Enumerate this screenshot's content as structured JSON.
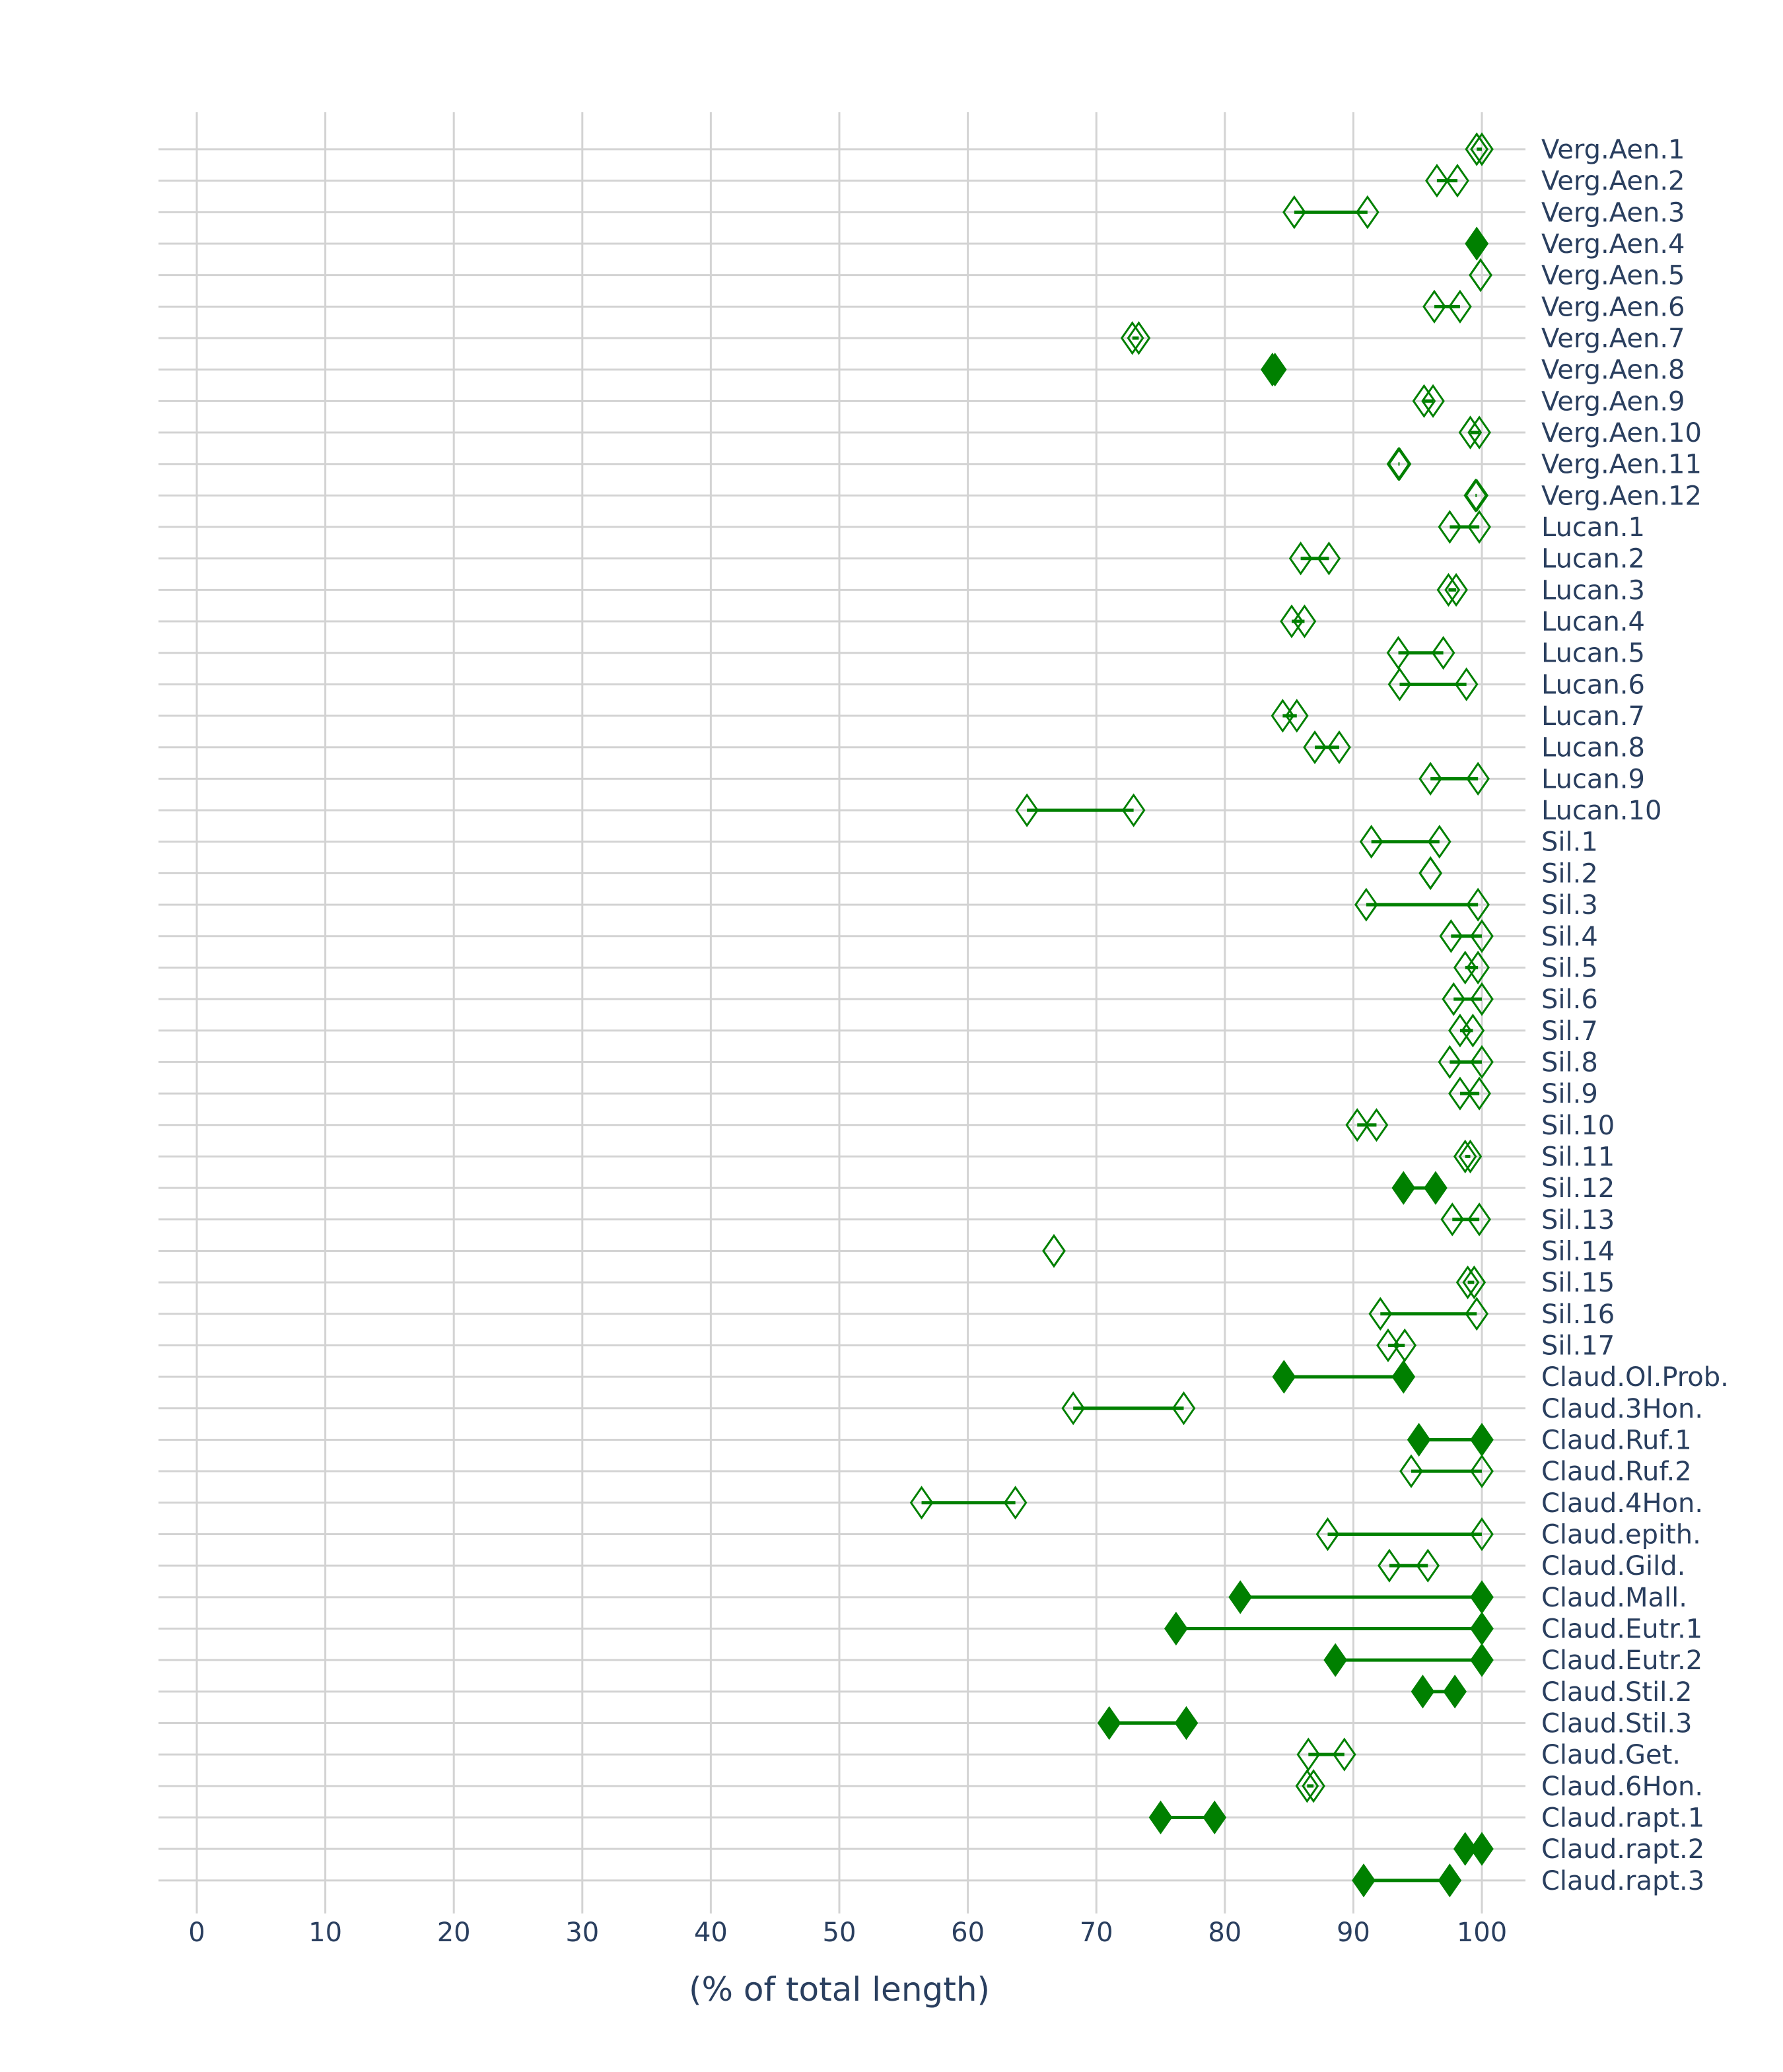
{
  "chart_data": {
    "type": "dumbbell",
    "title": "",
    "xlabel": "(% of total length)",
    "ylabel": "",
    "xlim": [
      0,
      100
    ],
    "x_ticks": [
      "0",
      "10",
      "20",
      "30",
      "40",
      "50",
      "60",
      "70",
      "80",
      "90",
      "100"
    ],
    "grid": true,
    "marker_color": "#008000",
    "grid_color": "#d3d3d3",
    "text_color": "#2a3f5f",
    "rows": [
      {
        "label": "Verg.Aen.1",
        "start": 99.6,
        "end": 100,
        "filled": false
      },
      {
        "label": "Verg.Aen.2",
        "start": 96.5,
        "end": 98.1,
        "filled": false
      },
      {
        "label": "Verg.Aen.3",
        "start": 85.4,
        "end": 91.1,
        "filled": false
      },
      {
        "label": "Verg.Aen.4",
        "start": 99.6,
        "end": 99.6,
        "filled": true
      },
      {
        "label": "Verg.Aen.5",
        "start": 99.9,
        "end": 99.9,
        "filled": false
      },
      {
        "label": "Verg.Aen.6",
        "start": 96.3,
        "end": 98.3,
        "filled": false
      },
      {
        "label": "Verg.Aen.7",
        "start": 72.8,
        "end": 73.3,
        "filled": false
      },
      {
        "label": "Verg.Aen.8",
        "start": 83.7,
        "end": 83.9,
        "filled": true
      },
      {
        "label": "Verg.Aen.9",
        "start": 95.5,
        "end": 96.2,
        "filled": false
      },
      {
        "label": "Verg.Aen.10",
        "start": 99.1,
        "end": 99.8,
        "filled": false
      },
      {
        "label": "Verg.Aen.11",
        "start": 93.5,
        "end": 93.6,
        "filled": false
      },
      {
        "label": "Verg.Aen.12",
        "start": 99.5,
        "end": 99.6,
        "filled": false
      },
      {
        "label": "Lucan.1",
        "start": 97.5,
        "end": 99.8,
        "filled": false
      },
      {
        "label": "Lucan.2",
        "start": 85.9,
        "end": 88.1,
        "filled": false
      },
      {
        "label": "Lucan.3",
        "start": 97.4,
        "end": 98.0,
        "filled": false
      },
      {
        "label": "Lucan.4",
        "start": 85.2,
        "end": 86.2,
        "filled": false
      },
      {
        "label": "Lucan.5",
        "start": 93.5,
        "end": 97.0,
        "filled": false
      },
      {
        "label": "Lucan.6",
        "start": 93.6,
        "end": 98.8,
        "filled": false
      },
      {
        "label": "Lucan.7",
        "start": 84.5,
        "end": 85.6,
        "filled": false
      },
      {
        "label": "Lucan.8",
        "start": 87.0,
        "end": 88.9,
        "filled": false
      },
      {
        "label": "Lucan.9",
        "start": 96.0,
        "end": 99.7,
        "filled": false
      },
      {
        "label": "Lucan.10",
        "start": 64.6,
        "end": 72.9,
        "filled": false
      },
      {
        "label": "Sil.1",
        "start": 91.4,
        "end": 96.7,
        "filled": false
      },
      {
        "label": "Sil.2",
        "start": 96.0,
        "end": 96.0,
        "filled": false
      },
      {
        "label": "Sil.3",
        "start": 91.0,
        "end": 99.7,
        "filled": false
      },
      {
        "label": "Sil.4",
        "start": 97.6,
        "end": 100,
        "filled": false
      },
      {
        "label": "Sil.5",
        "start": 98.7,
        "end": 99.7,
        "filled": false
      },
      {
        "label": "Sil.6",
        "start": 97.8,
        "end": 100,
        "filled": false
      },
      {
        "label": "Sil.7",
        "start": 98.3,
        "end": 99.3,
        "filled": false
      },
      {
        "label": "Sil.8",
        "start": 97.5,
        "end": 100,
        "filled": false
      },
      {
        "label": "Sil.9",
        "start": 98.3,
        "end": 99.8,
        "filled": false
      },
      {
        "label": "Sil.10",
        "start": 90.3,
        "end": 91.8,
        "filled": false
      },
      {
        "label": "Sil.11",
        "start": 98.7,
        "end": 99.1,
        "filled": false
      },
      {
        "label": "Sil.12",
        "start": 93.9,
        "end": 96.4,
        "filled": true
      },
      {
        "label": "Sil.13",
        "start": 97.7,
        "end": 99.8,
        "filled": false
      },
      {
        "label": "Sil.14",
        "start": 66.7,
        "end": 66.7,
        "filled": false
      },
      {
        "label": "Sil.15",
        "start": 98.9,
        "end": 99.4,
        "filled": false
      },
      {
        "label": "Sil.16",
        "start": 92.1,
        "end": 99.6,
        "filled": false
      },
      {
        "label": "Sil.17",
        "start": 92.7,
        "end": 94.0,
        "filled": false
      },
      {
        "label": "Claud.Ol.Prob.",
        "start": 84.6,
        "end": 93.9,
        "filled": true
      },
      {
        "label": "Claud.3Hon.",
        "start": 68.2,
        "end": 76.8,
        "filled": false
      },
      {
        "label": "Claud.Ruf.1",
        "start": 95.1,
        "end": 100,
        "filled": true
      },
      {
        "label": "Claud.Ruf.2",
        "start": 94.5,
        "end": 100,
        "filled": false
      },
      {
        "label": "Claud.4Hon.",
        "start": 56.4,
        "end": 63.7,
        "filled": false
      },
      {
        "label": "Claud.epith.",
        "start": 88.0,
        "end": 100,
        "filled": false
      },
      {
        "label": "Claud.Gild.",
        "start": 92.8,
        "end": 95.8,
        "filled": false
      },
      {
        "label": "Claud.Mall.",
        "start": 81.2,
        "end": 100,
        "filled": true
      },
      {
        "label": "Claud.Eutr.1",
        "start": 76.2,
        "end": 100,
        "filled": true
      },
      {
        "label": "Claud.Eutr.2",
        "start": 88.6,
        "end": 100,
        "filled": true
      },
      {
        "label": "Claud.Stil.2",
        "start": 95.4,
        "end": 97.9,
        "filled": true
      },
      {
        "label": "Claud.Stil.3",
        "start": 71.0,
        "end": 77.0,
        "filled": true
      },
      {
        "label": "Claud.Get.",
        "start": 86.5,
        "end": 89.3,
        "filled": false
      },
      {
        "label": "Claud.6Hon.",
        "start": 86.4,
        "end": 86.9,
        "filled": false
      },
      {
        "label": "Claud.rapt.1",
        "start": 75.0,
        "end": 79.2,
        "filled": true
      },
      {
        "label": "Claud.rapt.2",
        "start": 98.7,
        "end": 100,
        "filled": true
      },
      {
        "label": "Claud.rapt.3",
        "start": 90.8,
        "end": 97.5,
        "filled": true
      }
    ]
  }
}
